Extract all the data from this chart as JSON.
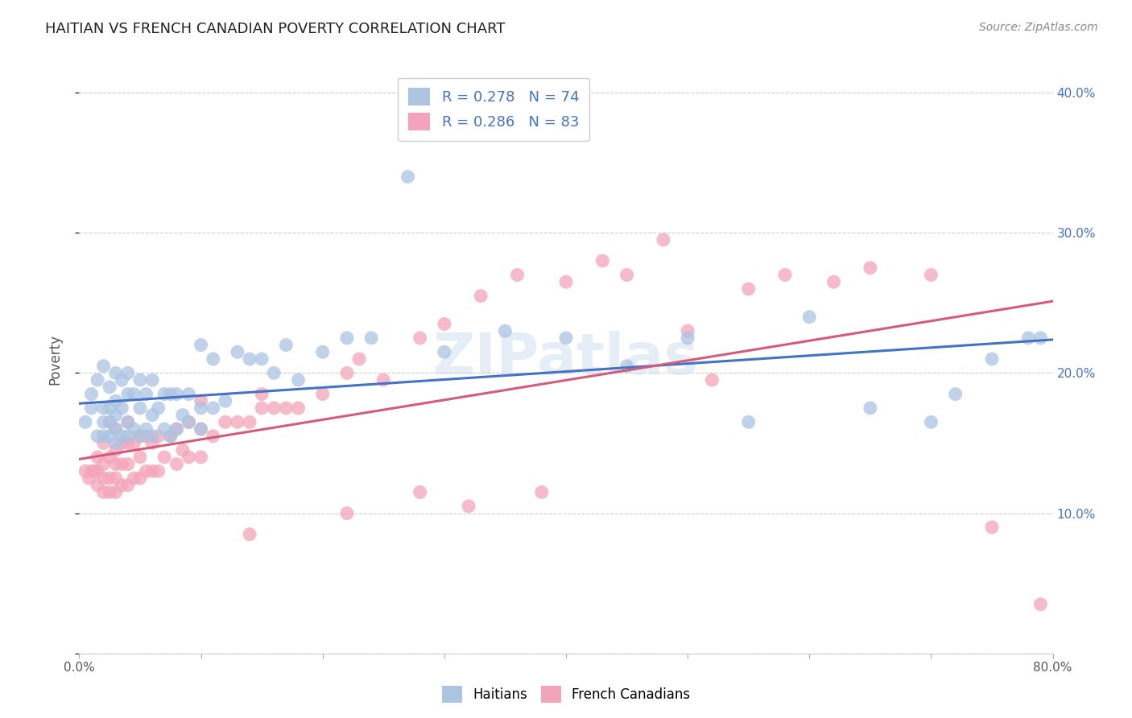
{
  "title": "HAITIAN VS FRENCH CANADIAN POVERTY CORRELATION CHART",
  "source": "Source: ZipAtlas.com",
  "ylabel": "Poverty",
  "xlim": [
    0.0,
    0.8
  ],
  "ylim": [
    -0.02,
    0.44
  ],
  "plot_ylim": [
    0.0,
    0.42
  ],
  "haitian_R": 0.278,
  "haitian_N": 74,
  "french_R": 0.286,
  "french_N": 83,
  "haitian_color": "#aac4e2",
  "haitian_line_color": "#4472c4",
  "french_color": "#f4a4ba",
  "french_line_color": "#d45c7a",
  "background_color": "#ffffff",
  "grid_color": "#cccccc",
  "haitian_x": [
    0.005,
    0.01,
    0.01,
    0.015,
    0.015,
    0.02,
    0.02,
    0.02,
    0.02,
    0.025,
    0.025,
    0.025,
    0.025,
    0.03,
    0.03,
    0.03,
    0.03,
    0.03,
    0.035,
    0.035,
    0.035,
    0.04,
    0.04,
    0.04,
    0.04,
    0.045,
    0.045,
    0.05,
    0.05,
    0.05,
    0.055,
    0.055,
    0.06,
    0.06,
    0.06,
    0.065,
    0.07,
    0.07,
    0.075,
    0.075,
    0.08,
    0.08,
    0.085,
    0.09,
    0.09,
    0.1,
    0.1,
    0.1,
    0.11,
    0.11,
    0.12,
    0.13,
    0.14,
    0.15,
    0.16,
    0.17,
    0.18,
    0.2,
    0.22,
    0.24,
    0.27,
    0.3,
    0.35,
    0.4,
    0.45,
    0.5,
    0.55,
    0.6,
    0.65,
    0.7,
    0.72,
    0.75,
    0.78,
    0.79
  ],
  "haitian_y": [
    0.165,
    0.175,
    0.185,
    0.155,
    0.195,
    0.155,
    0.165,
    0.175,
    0.205,
    0.155,
    0.165,
    0.175,
    0.19,
    0.15,
    0.16,
    0.17,
    0.18,
    0.2,
    0.155,
    0.175,
    0.195,
    0.155,
    0.165,
    0.185,
    0.2,
    0.16,
    0.185,
    0.155,
    0.175,
    0.195,
    0.16,
    0.185,
    0.155,
    0.17,
    0.195,
    0.175,
    0.16,
    0.185,
    0.155,
    0.185,
    0.16,
    0.185,
    0.17,
    0.165,
    0.185,
    0.16,
    0.175,
    0.22,
    0.175,
    0.21,
    0.18,
    0.215,
    0.21,
    0.21,
    0.2,
    0.22,
    0.195,
    0.215,
    0.225,
    0.225,
    0.34,
    0.215,
    0.23,
    0.225,
    0.205,
    0.225,
    0.165,
    0.24,
    0.175,
    0.165,
    0.185,
    0.21,
    0.225,
    0.225
  ],
  "french_x": [
    0.005,
    0.008,
    0.01,
    0.012,
    0.015,
    0.015,
    0.015,
    0.02,
    0.02,
    0.02,
    0.02,
    0.025,
    0.025,
    0.025,
    0.025,
    0.03,
    0.03,
    0.03,
    0.03,
    0.03,
    0.035,
    0.035,
    0.035,
    0.04,
    0.04,
    0.04,
    0.04,
    0.045,
    0.045,
    0.05,
    0.05,
    0.05,
    0.055,
    0.055,
    0.06,
    0.06,
    0.065,
    0.065,
    0.07,
    0.075,
    0.08,
    0.08,
    0.085,
    0.09,
    0.09,
    0.1,
    0.1,
    0.1,
    0.11,
    0.12,
    0.13,
    0.14,
    0.15,
    0.15,
    0.16,
    0.17,
    0.18,
    0.2,
    0.22,
    0.23,
    0.25,
    0.28,
    0.3,
    0.33,
    0.36,
    0.4,
    0.43,
    0.45,
    0.48,
    0.5,
    0.52,
    0.55,
    0.58,
    0.62,
    0.65,
    0.7,
    0.75,
    0.79,
    0.32,
    0.22,
    0.14,
    0.28,
    0.38
  ],
  "french_y": [
    0.13,
    0.125,
    0.13,
    0.13,
    0.12,
    0.13,
    0.14,
    0.115,
    0.125,
    0.135,
    0.15,
    0.115,
    0.125,
    0.14,
    0.165,
    0.115,
    0.125,
    0.135,
    0.145,
    0.16,
    0.12,
    0.135,
    0.15,
    0.12,
    0.135,
    0.15,
    0.165,
    0.125,
    0.15,
    0.125,
    0.14,
    0.155,
    0.13,
    0.155,
    0.13,
    0.15,
    0.13,
    0.155,
    0.14,
    0.155,
    0.135,
    0.16,
    0.145,
    0.14,
    0.165,
    0.14,
    0.16,
    0.18,
    0.155,
    0.165,
    0.165,
    0.165,
    0.175,
    0.185,
    0.175,
    0.175,
    0.175,
    0.185,
    0.2,
    0.21,
    0.195,
    0.225,
    0.235,
    0.255,
    0.27,
    0.265,
    0.28,
    0.27,
    0.295,
    0.23,
    0.195,
    0.26,
    0.27,
    0.265,
    0.275,
    0.27,
    0.09,
    0.035,
    0.105,
    0.1,
    0.085,
    0.115,
    0.115
  ]
}
